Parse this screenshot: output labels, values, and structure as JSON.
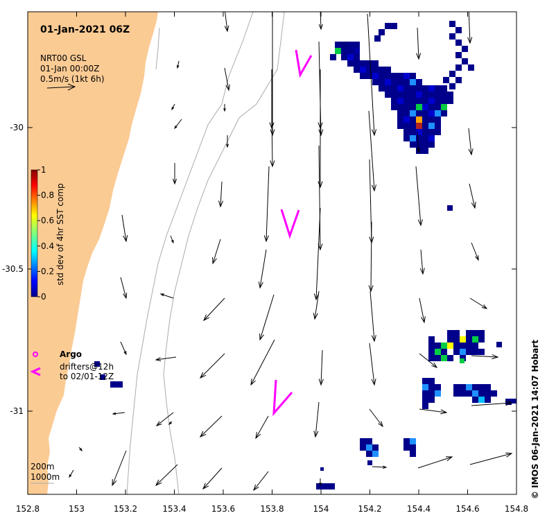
{
  "title": "01-Jan-2021 06Z",
  "legend": {
    "line1": "NRT00 GSL",
    "line2": "01-Jan 00:00Z",
    "line3": "0.5m/s (1kt 6h)"
  },
  "colorbar": {
    "label": "std dev of 4hr SST comp",
    "ticks": [
      "1",
      "0.8",
      "0.6",
      "0.4",
      "0.2",
      "0"
    ]
  },
  "argo": {
    "label": "Argo",
    "drifters_line1": "drifters@12h",
    "drifters_line2": "to 02/01-12Z"
  },
  "depth_legend": {
    "line1": "200m",
    "line2": "1000m"
  },
  "credit": "© IMOS 06-Jan-2021 14:07 Hobart",
  "colors": {
    "land": "#fbcb94",
    "drifter": "#ff00ff",
    "contour": "#aaaaaa",
    "sst_low": "#00008b",
    "sst_high": "#8b0000"
  },
  "axes": {
    "x_ticks": [
      "152.8",
      "153",
      "153.2",
      "153.4",
      "153.6",
      "153.8",
      "154",
      "154.2",
      "154.4",
      "154.6",
      "154.8"
    ],
    "y_ticks": [
      "-30",
      "-30.5",
      "-31"
    ],
    "xlim": [
      152.8,
      154.8
    ],
    "ylim": [
      -31.3,
      -29.6
    ]
  },
  "chart_data": {
    "type": "map",
    "title": "01-Jan-2021 06Z",
    "x_ticks": [
      152.8,
      153,
      153.2,
      153.4,
      153.6,
      153.8,
      154,
      154.2,
      154.4,
      154.6,
      154.8
    ],
    "y_ticks": [
      -30,
      -30.5,
      -31
    ],
    "colorbar_range": [
      0,
      1
    ],
    "colorbar_label": "std dev of 4hr SST comp",
    "layers": [
      "coastline",
      "bathymetry 200m",
      "bathymetry 1000m",
      "current vectors",
      "SST std dev pixels",
      "drifter tracks"
    ]
  }
}
